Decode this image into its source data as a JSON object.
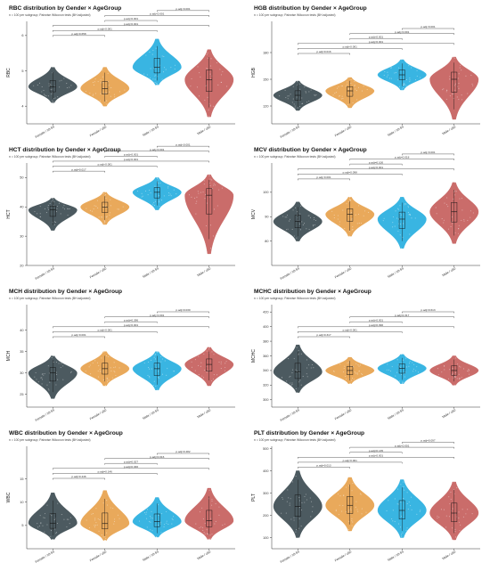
{
  "figure": {
    "subtitle": "n = 100 per subgroup; Pairwise Wilcoxon tests (BH adjusted)",
    "groups": [
      "Female / 18-59",
      "Female / ≥60",
      "Male / 18-59",
      "Male / ≥60"
    ],
    "colors": [
      "#3d4c52",
      "#e7a24d",
      "#28afe0",
      "#c65f5d"
    ],
    "comparisons": [
      [
        0,
        1
      ],
      [
        0,
        2
      ],
      [
        0,
        3
      ],
      [
        1,
        2
      ],
      [
        1,
        3
      ],
      [
        2,
        3
      ]
    ]
  },
  "chart_data": [
    {
      "type": "violin",
      "title": "RBC distribution by Gender × AgeGroup",
      "ylabel": "RBC",
      "ylim": [
        3.5,
        6.4
      ],
      "yticks": [
        4,
        5,
        6
      ],
      "medians": [
        4.55,
        4.5,
        5.1,
        4.75
      ],
      "ranges": [
        [
          4.1,
          5.1
        ],
        [
          4.0,
          5.1
        ],
        [
          4.6,
          5.9
        ],
        [
          3.7,
          5.6
        ]
      ],
      "pvalues": [
        "p.adj=0.658",
        "p.adj<0.001",
        "p.adj<0.001",
        "p.adj<0.001",
        "p.adj<0.001",
        "p.adj<0.001"
      ]
    },
    {
      "type": "violin",
      "title": "HGB distribution by Gender × AgeGroup",
      "ylabel": "HGB",
      "ylim": [
        100,
        215
      ],
      "yticks": [
        120,
        150,
        180
      ],
      "medians": [
        132,
        137,
        155,
        150
      ],
      "ranges": [
        [
          115,
          148
        ],
        [
          118,
          152
        ],
        [
          138,
          172
        ],
        [
          105,
          175
        ]
      ],
      "pvalues": [
        "p.adj=0.016",
        "p.adj<0.001",
        "p.adj<0.001",
        "p.adj<0.001",
        "p.adj<0.001",
        "p.adj<0.001"
      ]
    },
    {
      "type": "violin",
      "title": "HCT distribution by Gender × AgeGroup",
      "ylabel": "HCT",
      "ylim": [
        20,
        55
      ],
      "yticks": [
        20,
        30,
        40,
        50
      ],
      "medians": [
        39,
        40,
        45,
        44
      ],
      "ranges": [
        [
          32,
          43
        ],
        [
          34,
          45
        ],
        [
          39,
          50
        ],
        [
          24,
          51
        ]
      ],
      "pvalues": [
        "p.adj=0.017",
        "p.adj<0.001",
        "p.adj<0.001",
        "p.adj<0.001",
        "p.adj<0.001",
        "p.adj<0.001"
      ]
    },
    {
      "type": "violin",
      "title": "MCV distribution by Gender × AgeGroup",
      "ylabel": "MCV",
      "ylim": [
        70,
        112
      ],
      "yticks": [
        80,
        90,
        100
      ],
      "medians": [
        88,
        91,
        89,
        92
      ],
      "ranges": [
        [
          80,
          96
        ],
        [
          82,
          98
        ],
        [
          77,
          98
        ],
        [
          79,
          104
        ]
      ],
      "pvalues": [
        "p.adj<0.001",
        "p.adj=0.098",
        "p.adj<0.001",
        "p.adj=0.100",
        "p.adj=0.018",
        "p.adj<0.001"
      ]
    },
    {
      "type": "violin",
      "title": "MCH distribution by Gender × AgeGroup",
      "ylabel": "MCH",
      "ylim": [
        22,
        46
      ],
      "yticks": [
        25,
        30,
        35,
        40
      ],
      "medians": [
        30,
        31,
        31,
        32
      ],
      "ranges": [
        [
          24,
          34
        ],
        [
          27,
          35
        ],
        [
          26,
          35
        ],
        [
          27,
          36
        ]
      ],
      "pvalues": [
        "p.adj<0.001",
        "p.adj<0.001",
        "p.adj<0.001",
        "p.adj=0.396",
        "p.adj<0.001",
        "p.adj=0.030"
      ]
    },
    {
      "type": "violin",
      "title": "MCHC distribution by Gender × AgeGroup",
      "ylabel": "MCHC",
      "ylim": [
        290,
        430
      ],
      "yticks": [
        300,
        320,
        340,
        360,
        380,
        400,
        420
      ],
      "medians": [
        338,
        340,
        343,
        340
      ],
      "ranges": [
        [
          310,
          375
        ],
        [
          322,
          358
        ],
        [
          322,
          362
        ],
        [
          320,
          360
        ]
      ],
      "pvalues": [
        "p.adj=0.317",
        "p.adj<0.001",
        "p.adj=0.096",
        "p.adj<0.001",
        "p.adj=0.317",
        "p.adj=0.613"
      ]
    },
    {
      "type": "violin",
      "title": "WBC distribution by Gender × AgeGroup",
      "ylabel": "WBC",
      "ylim": [
        0,
        22
      ],
      "yticks": [
        5,
        10,
        15
      ],
      "medians": [
        5.5,
        5.4,
        5.8,
        6.0
      ],
      "ranges": [
        [
          2.0,
          12.0
        ],
        [
          1.8,
          12.5
        ],
        [
          2.5,
          11.0
        ],
        [
          2.0,
          13.0
        ]
      ],
      "pvalues": [
        "p.adj=0.446",
        "p.adj=0.146",
        "p.adj=0.046",
        "p.adj=0.027",
        "p.adj=0.016",
        "p.adj=0.482"
      ]
    },
    {
      "type": "violin",
      "title": "PLT distribution by Gender × AgeGroup",
      "ylabel": "PLT",
      "ylim": [
        50,
        510
      ],
      "yticks": [
        100,
        200,
        300,
        400,
        500
      ],
      "medians": [
        240,
        245,
        222,
        210
      ],
      "ranges": [
        [
          100,
          400
        ],
        [
          130,
          370
        ],
        [
          100,
          360
        ],
        [
          90,
          350
        ]
      ],
      "pvalues": [
        "p.adj=0.013",
        "p.adj<0.001",
        "p.adj<0.001",
        "p.adj=0.135",
        "p.adj<0.001",
        "p.adj=0.097"
      ]
    }
  ]
}
